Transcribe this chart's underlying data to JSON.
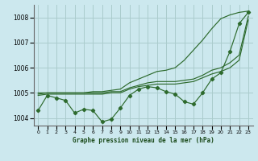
{
  "xlabel": "Graphe pression niveau de la mer (hPa)",
  "ylabel": "",
  "bg_color": "#cce8ee",
  "grid_color": "#aacccc",
  "line_color": "#2d6a2d",
  "hours": [
    0,
    1,
    2,
    3,
    4,
    5,
    6,
    7,
    8,
    9,
    10,
    11,
    12,
    13,
    14,
    15,
    16,
    17,
    18,
    19,
    20,
    21,
    22,
    23
  ],
  "line_actual": [
    1004.3,
    1004.9,
    1004.8,
    1004.7,
    1004.2,
    1004.35,
    1004.3,
    1003.85,
    1003.95,
    1004.4,
    1004.9,
    1005.15,
    1005.25,
    1005.2,
    1005.05,
    1004.95,
    1004.65,
    1004.55,
    1005.0,
    1005.55,
    1005.8,
    1006.65,
    1007.75,
    1008.2
  ],
  "line_max": [
    1005.0,
    1005.0,
    1005.0,
    1005.0,
    1005.0,
    1005.0,
    1005.05,
    1005.05,
    1005.1,
    1005.15,
    1005.4,
    1005.55,
    1005.7,
    1005.85,
    1005.9,
    1006.0,
    1006.3,
    1006.7,
    1007.1,
    1007.55,
    1007.95,
    1008.1,
    1008.2,
    1008.25
  ],
  "line_mean": [
    1004.95,
    1005.0,
    1005.0,
    1005.0,
    1005.0,
    1005.0,
    1005.0,
    1005.0,
    1005.05,
    1005.05,
    1005.2,
    1005.3,
    1005.4,
    1005.45,
    1005.45,
    1005.45,
    1005.5,
    1005.55,
    1005.7,
    1005.9,
    1006.0,
    1006.2,
    1006.5,
    1008.05
  ],
  "line_min": [
    1004.9,
    1004.95,
    1004.95,
    1004.95,
    1004.95,
    1004.95,
    1004.95,
    1004.95,
    1005.0,
    1005.0,
    1005.15,
    1005.25,
    1005.3,
    1005.35,
    1005.35,
    1005.35,
    1005.4,
    1005.45,
    1005.6,
    1005.75,
    1005.85,
    1006.0,
    1006.3,
    1007.9
  ],
  "ylim": [
    1003.7,
    1008.5
  ],
  "yticks": [
    1004,
    1005,
    1006,
    1007,
    1008
  ],
  "xticks": [
    0,
    1,
    2,
    3,
    4,
    5,
    6,
    7,
    8,
    9,
    10,
    11,
    12,
    13,
    14,
    15,
    16,
    17,
    18,
    19,
    20,
    21,
    22,
    23
  ]
}
